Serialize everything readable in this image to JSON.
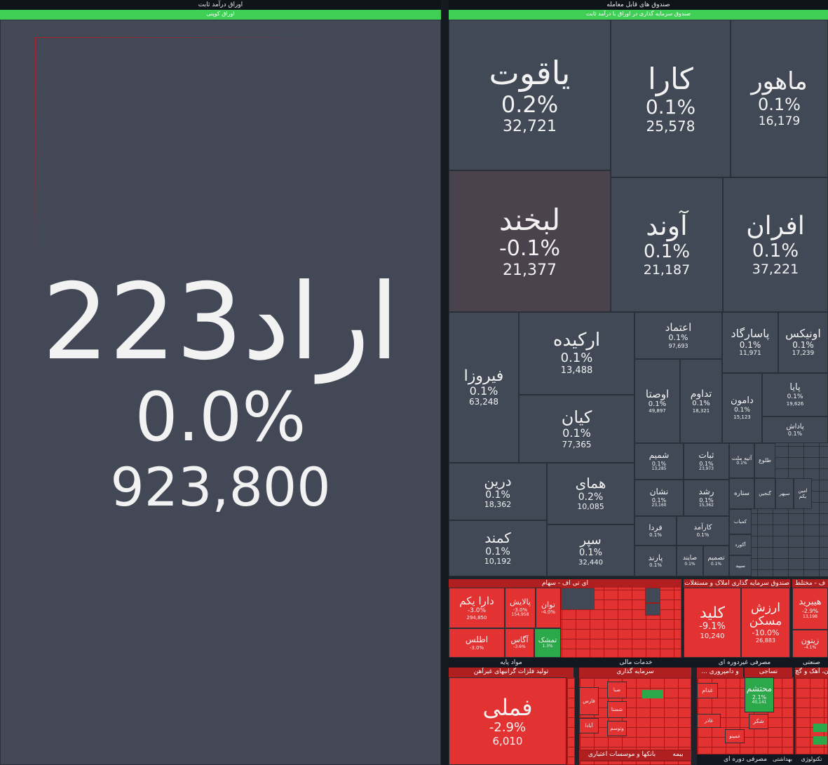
{
  "left": {
    "header": "اوراق درآمد ثابت",
    "subheader": "اوراق کوپنی",
    "tile": {
      "name": "اراد223",
      "pct": "0.0%",
      "value": "923,800"
    }
  },
  "right": {
    "header": "صندوق های قابل معامله",
    "subheader": "صندوق سرمایه گذاری در اوراق با درآمد ثابت",
    "tiles": [
      {
        "name": "یاقوت",
        "pct": "0.2%",
        "value": "32,721"
      },
      {
        "name": "کارا",
        "pct": "0.1%",
        "value": "25,578"
      },
      {
        "name": "ماهور",
        "pct": "0.1%",
        "value": "16,179"
      },
      {
        "name": "لبخند",
        "pct": "-0.1%",
        "value": "21,377"
      },
      {
        "name": "آوند",
        "pct": "0.1%",
        "value": "21,187"
      },
      {
        "name": "افران",
        "pct": "0.1%",
        "value": "37,221"
      },
      {
        "name": "فیروزا",
        "pct": "0.1%",
        "value": "63,248"
      },
      {
        "name": "ارکیده",
        "pct": "0.1%",
        "value": "13,488"
      },
      {
        "name": "کیان",
        "pct": "0.1%",
        "value": "77,365"
      },
      {
        "name": "اعتماد",
        "pct": "0.1%",
        "value": "97,693"
      },
      {
        "name": "پاسارگاد",
        "pct": "0.1%",
        "value": "11,971"
      },
      {
        "name": "اونیکس",
        "pct": "0.1%",
        "value": "17,239"
      },
      {
        "name": "اوصتا",
        "pct": "0.1%",
        "value": "49,897"
      },
      {
        "name": "تداوم",
        "pct": "0.1%",
        "value": "18,321"
      },
      {
        "name": "دامون",
        "pct": "0.1%",
        "value": "15,123"
      },
      {
        "name": "پایا",
        "pct": "0.1%",
        "value": "19,626"
      },
      {
        "name": "پاداش",
        "pct": "0.1%",
        "value": ""
      },
      {
        "name": "درین",
        "pct": "0.1%",
        "value": "18,362"
      },
      {
        "name": "همای",
        "pct": "0.2%",
        "value": "10,085"
      },
      {
        "name": "کمند",
        "pct": "0.1%",
        "value": "10,192"
      },
      {
        "name": "سپر",
        "pct": "0.1%",
        "value": "32,440"
      },
      {
        "name": "شمیم",
        "pct": "0.1%",
        "value": "13,285"
      },
      {
        "name": "ثبات",
        "pct": "0.1%",
        "value": "23,973"
      },
      {
        "name": "نشان",
        "pct": "0.1%",
        "value": "23,160"
      },
      {
        "name": "رشد",
        "pct": "0.1%",
        "value": "15,362"
      },
      {
        "name": "فردا",
        "pct": "0.1%",
        "value": ""
      },
      {
        "name": "کارآمد",
        "pct": "0.1%",
        "value": ""
      },
      {
        "name": "پارند",
        "pct": "0.1%",
        "value": ""
      },
      {
        "name": "صایند",
        "pct": "0.1%",
        "value": ""
      },
      {
        "name": "تصمیم",
        "pct": "0.1%",
        "value": ""
      },
      {
        "name": "آتیه ملت",
        "pct": "0.1%",
        "value": ""
      },
      {
        "name": "طلوع",
        "pct": "",
        "value": ""
      },
      {
        "name": "ستاره",
        "pct": "",
        "value": ""
      },
      {
        "name": "گنجین",
        "pct": "",
        "value": ""
      },
      {
        "name": "سپهر",
        "pct": "",
        "value": ""
      },
      {
        "name": "امین یکم",
        "pct": "",
        "value": ""
      },
      {
        "name": "کمیاب",
        "pct": "",
        "value": ""
      },
      {
        "name": "آکورد",
        "pct": "",
        "value": ""
      },
      {
        "name": "سپید",
        "pct": "",
        "value": ""
      }
    ],
    "etf": {
      "header": "ای تی اف - سهام",
      "tiles": [
        {
          "name": "دارا یکم",
          "pct": "-3.0%",
          "value": "294,850"
        },
        {
          "name": "پالایش",
          "pct": "-3.0%",
          "value": "154,958"
        },
        {
          "name": "توان",
          "pct": "-4.0%",
          "value": ""
        },
        {
          "name": "اطلس",
          "pct": "-3.0%",
          "value": ""
        },
        {
          "name": "آگاس",
          "pct": "-3.6%",
          "value": ""
        },
        {
          "name": "تمشک",
          "pct": "1.3%",
          "value": ""
        }
      ]
    },
    "land": {
      "header": "صندوق سرمایه گذاری املاک و مستغلات",
      "tiles": [
        {
          "name": "کلید",
          "pct": "-9.1%",
          "value": "10,240"
        },
        {
          "name": "ارزش مسکن",
          "pct": "-10.0%",
          "value": "26,883"
        }
      ]
    },
    "mixed": {
      "header": "ف - مختلط",
      "tiles": [
        {
          "name": "هیبرید",
          "pct": "-2.9%",
          "value": "13,198"
        },
        {
          "name": "زیتون",
          "pct": "-4.1%",
          "value": ""
        }
      ]
    }
  },
  "bottom": {
    "base": {
      "header": "مواد پایه",
      "subheader": "تولید فلزات گرانبهای غیرآهن",
      "tile": {
        "name": "فملی",
        "pct": "-2.9%",
        "value": "6,010"
      }
    },
    "finance": {
      "header": "خدمات مالی",
      "subheader": "سرمایه گذاری",
      "footer": "بانکها و موسسات اعتباری",
      "footer2": "بیمه",
      "small": [
        "فارس",
        "صبا",
        "شستا",
        "وتوسم",
        "آبادا"
      ]
    },
    "consumer": {
      "header": "مصرفی غیردوره ای",
      "subheader": "... و دامپروری",
      "sub2": "نساجی",
      "tile": {
        "name": "محتشم",
        "pct": "2.1%",
        "value": "40,141"
      },
      "small": [
        "غدام",
        "شکر",
        "غمینو",
        "غاذر"
      ],
      "footer": "مصرفی دوره ای"
    },
    "industrial": {
      "header": "صنعتی",
      "subheader": "سیمان، آهک و گچ",
      "footer": "بهداشتی",
      "footer2": "تکنولوژی"
    }
  }
}
